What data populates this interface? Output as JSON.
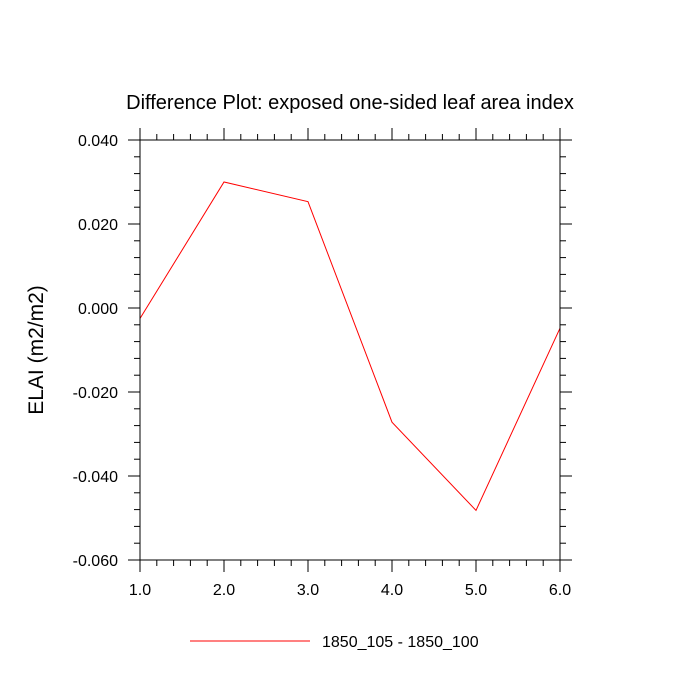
{
  "chart_data": {
    "type": "line",
    "title": "Difference Plot: exposed one-sided leaf area index",
    "xlabel": "",
    "ylabel": "ELAI  (m2/m2)",
    "xlim": [
      1.0,
      6.0
    ],
    "ylim": [
      -0.06,
      0.04
    ],
    "x_ticks": [
      1.0,
      2.0,
      3.0,
      4.0,
      5.0,
      6.0
    ],
    "x_tick_labels": [
      "1.0",
      "2.0",
      "3.0",
      "4.0",
      "5.0",
      "6.0"
    ],
    "y_ticks": [
      -0.06,
      -0.04,
      -0.02,
      0.0,
      0.02,
      0.04
    ],
    "y_tick_labels": [
      "-0.060",
      "-0.040",
      "-0.020",
      "0.000",
      "0.020",
      "0.040"
    ],
    "x_minor_step": 0.2,
    "y_minor_step": 0.004,
    "grid": false,
    "legend_position": "bottom-center",
    "series": [
      {
        "name": "1850_105 - 1850_100",
        "color": "#ff0000",
        "x": [
          1.0,
          2.0,
          3.0,
          4.0,
          5.0,
          6.0
        ],
        "y": [
          -0.0025,
          0.03,
          0.0253,
          -0.0272,
          -0.0482,
          -0.0048
        ]
      }
    ]
  }
}
